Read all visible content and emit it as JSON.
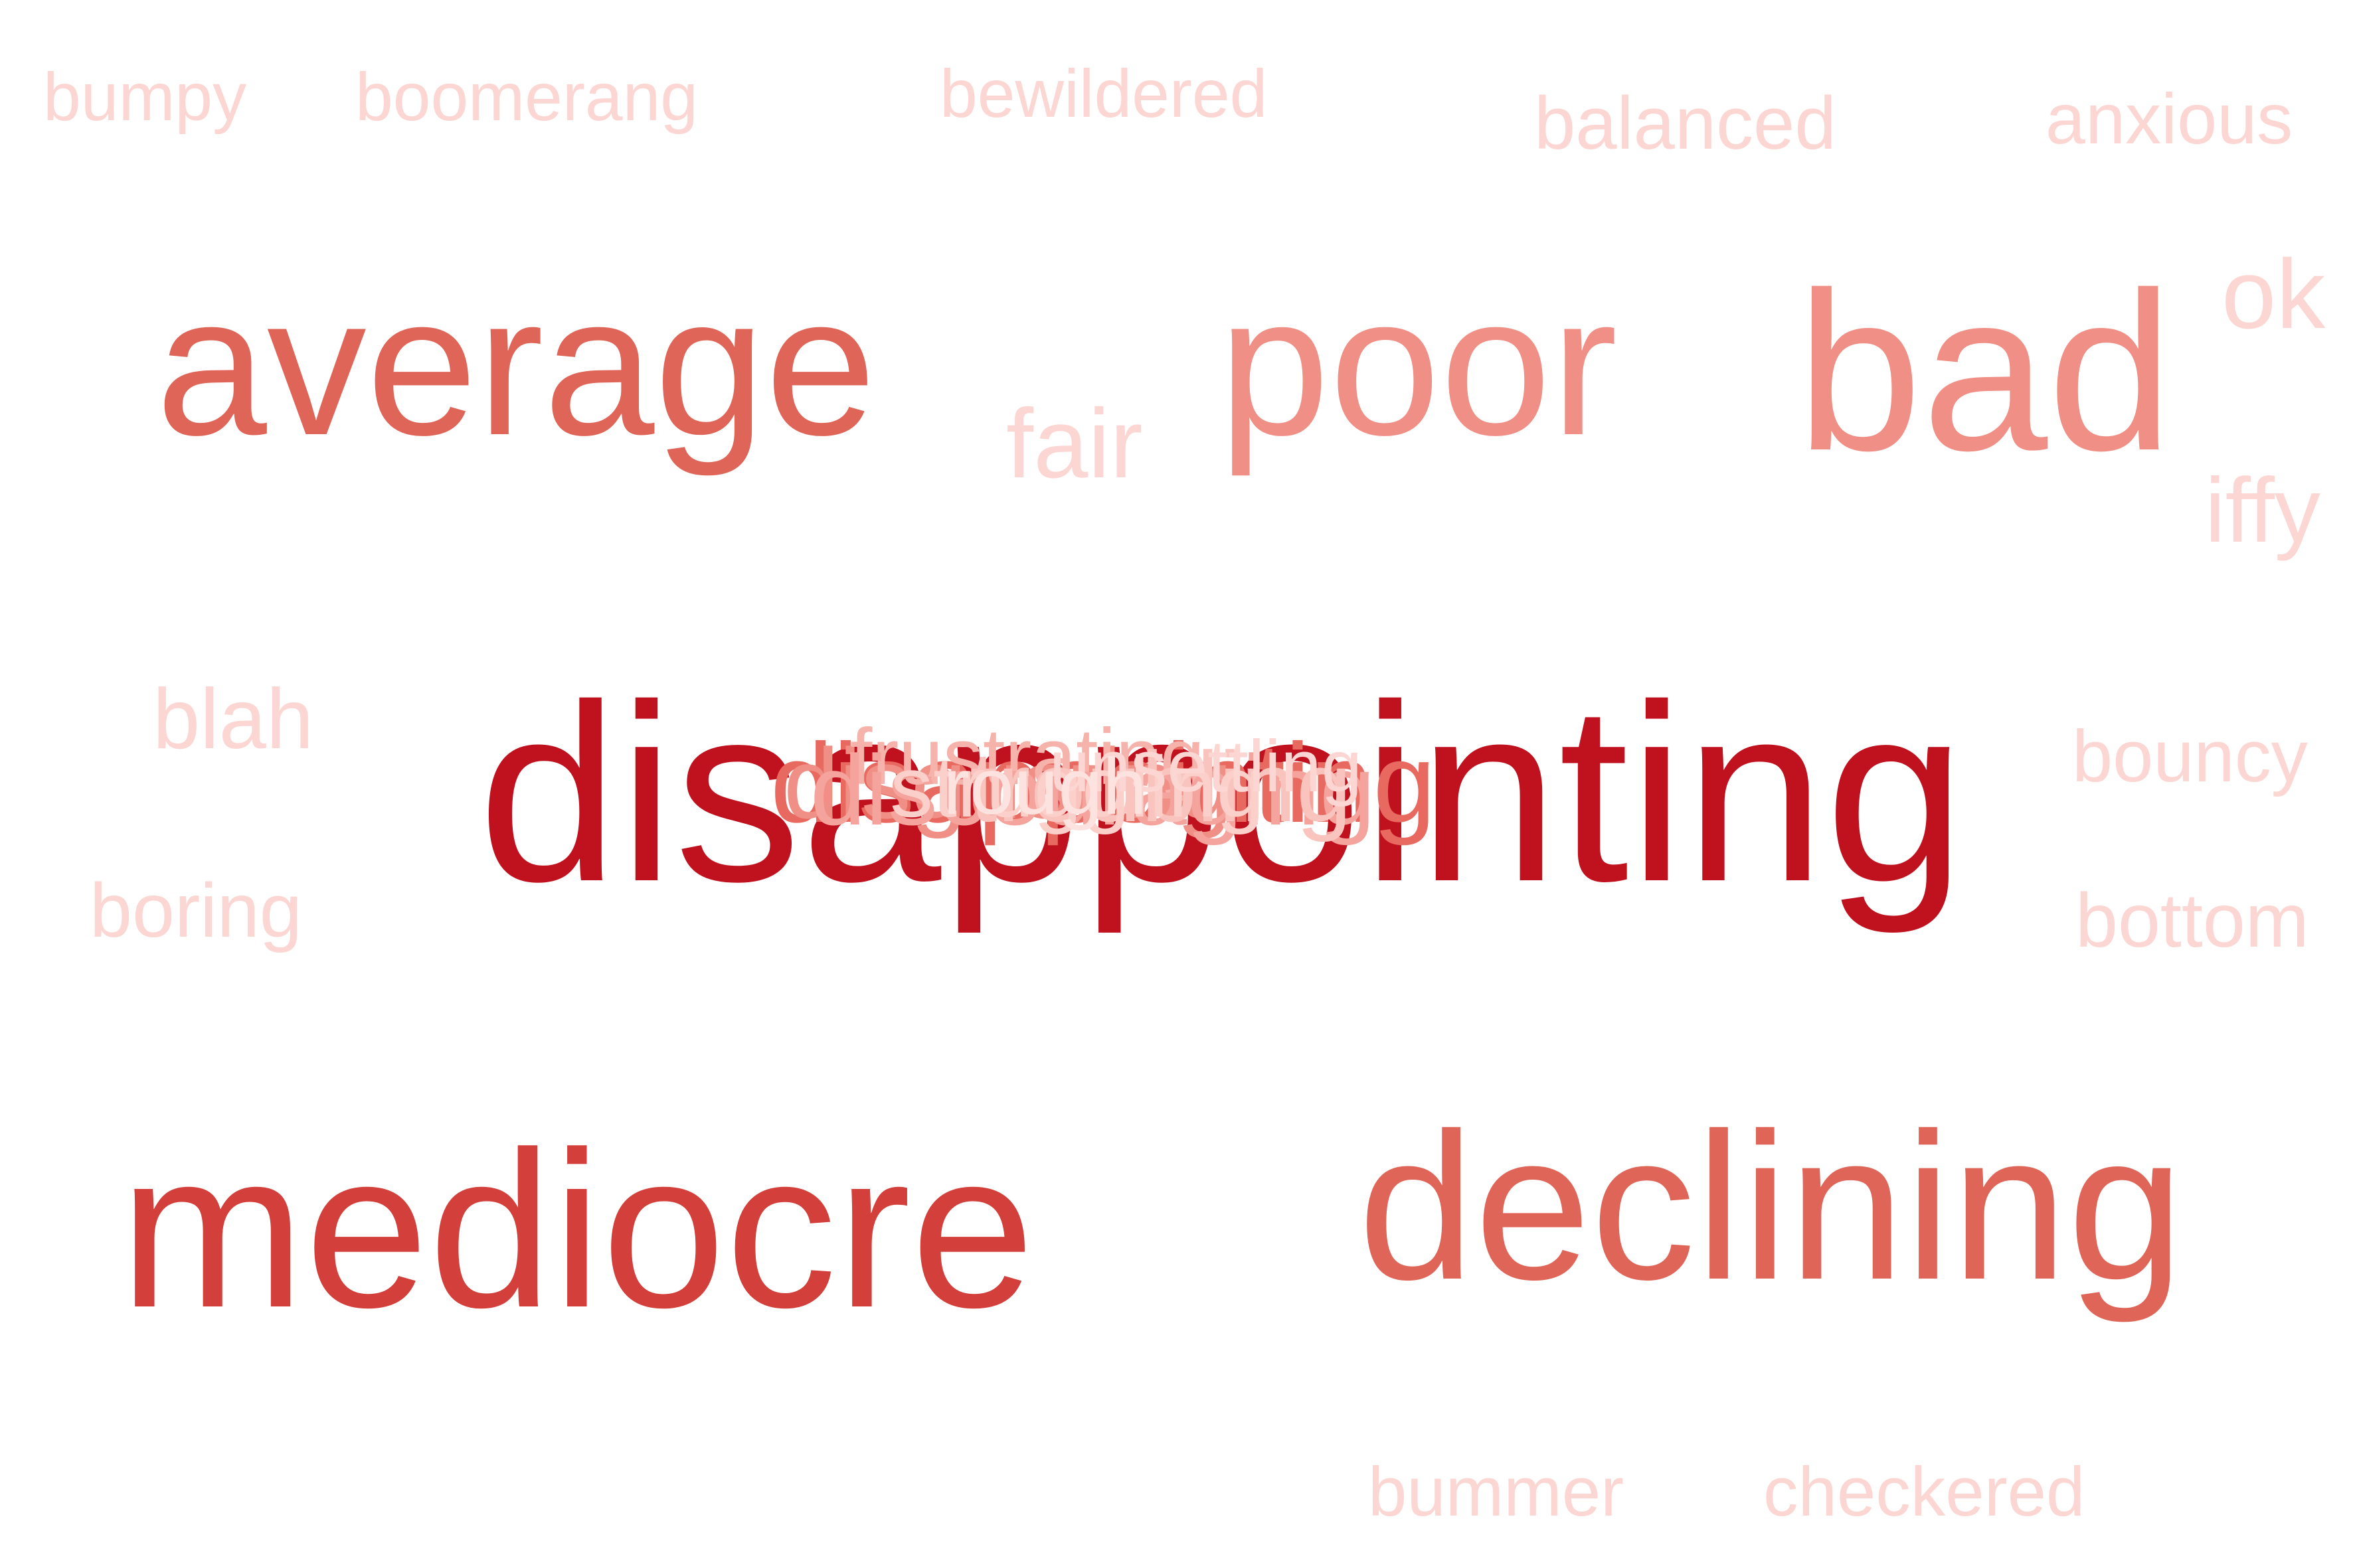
{
  "cloud": {
    "words": {
      "disappointing": "disappointing",
      "average": "average",
      "poor": "poor",
      "bad": "bad",
      "mediocre": "mediocre",
      "declining": "declining",
      "bumpy": "bumpy",
      "boomerang": "boomerang",
      "bewildered": "bewildered",
      "balanced": "balanced",
      "anxious": "anxious",
      "ok": "ok",
      "fair": "fair",
      "iffy": "iffy",
      "blah": "blah",
      "bouncy": "bouncy",
      "boring": "boring",
      "bottom": "bottom",
      "bummer": "bummer",
      "checkered": "checkered"
    },
    "overlapping": [
      "disappointing",
      "disgusting",
      "frustrating",
      "discouraging",
      "troubling",
      "struggling",
      "unsettling",
      "rough"
    ],
    "colors": {
      "darkest": "#c0111f",
      "dark": "#d33f3a",
      "medium": "#e06559",
      "light": "#f08f86",
      "faint": "#fcd6d2",
      "background": "#ffffff"
    }
  }
}
